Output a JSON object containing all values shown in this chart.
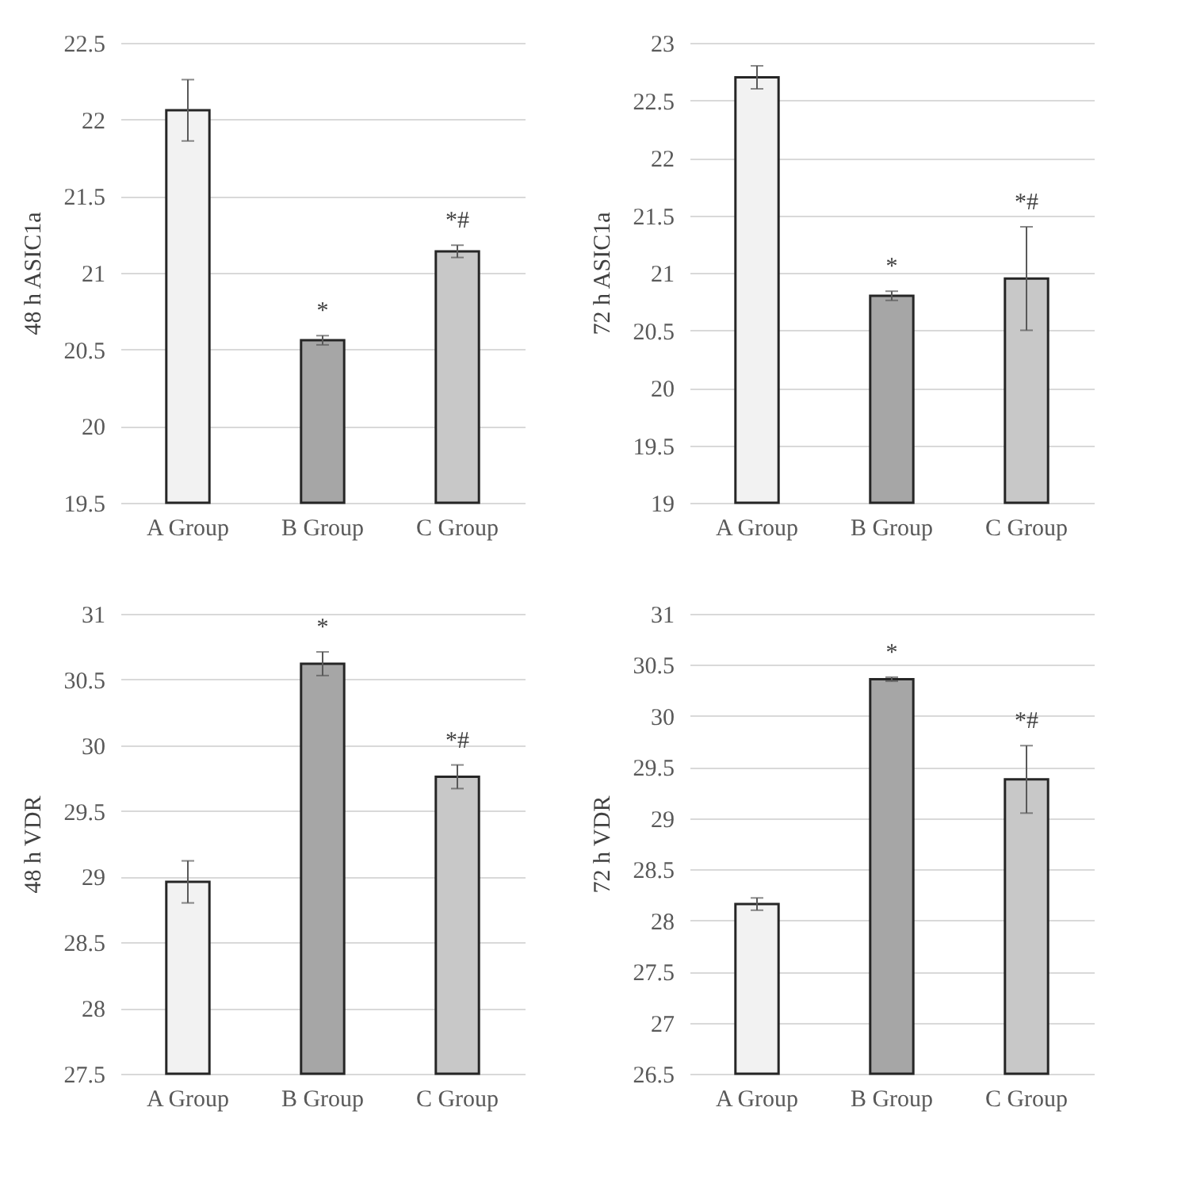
{
  "chart_data": [
    {
      "type": "bar",
      "ylabel": "48 h ASIC1a",
      "categories": [
        "A Group",
        "B Group",
        "C Group"
      ],
      "values": [
        22.06,
        20.56,
        21.14
      ],
      "errors": [
        0.2,
        0.03,
        0.04
      ],
      "colors": [
        "#f2f2f2",
        "#a6a6a6",
        "#c8c8c8"
      ],
      "ylim": [
        19.5,
        22.5
      ],
      "yticks": [
        19.5,
        20,
        20.5,
        21,
        21.5,
        22,
        22.5
      ],
      "grid": "y",
      "annotations": [
        "*",
        "*#"
      ]
    },
    {
      "type": "bar",
      "ylabel": "72 h ASIC1a",
      "categories": [
        "A Group",
        "B Group",
        "C Group"
      ],
      "values": [
        22.7,
        20.8,
        20.95
      ],
      "errors": [
        0.1,
        0.04,
        0.45
      ],
      "colors": [
        "#f2f2f2",
        "#a6a6a6",
        "#c8c8c8"
      ],
      "ylim": [
        19,
        23
      ],
      "yticks": [
        19,
        19.5,
        20,
        20.5,
        21,
        21.5,
        22,
        22.5,
        23
      ],
      "grid": "y",
      "annotations": [
        "*",
        "*#"
      ]
    },
    {
      "type": "bar",
      "ylabel": "48 h VDR",
      "categories": [
        "A Group",
        "B Group",
        "C Group"
      ],
      "values": [
        28.96,
        30.62,
        29.76
      ],
      "errors": [
        0.16,
        0.09,
        0.09
      ],
      "colors": [
        "#f2f2f2",
        "#a6a6a6",
        "#c8c8c8"
      ],
      "ylim": [
        27.5,
        31
      ],
      "yticks": [
        27.5,
        28,
        28.5,
        29,
        29.5,
        30,
        30.5,
        31
      ],
      "grid": "y",
      "annotations": [
        "*",
        "*#"
      ]
    },
    {
      "type": "bar",
      "ylabel": "72 h VDR",
      "categories": [
        "A Group",
        "B Group",
        "C Group"
      ],
      "values": [
        28.16,
        30.36,
        29.38
      ],
      "errors": [
        0.06,
        0.02,
        0.33
      ],
      "colors": [
        "#f2f2f2",
        "#a6a6a6",
        "#c8c8c8"
      ],
      "ylim": [
        26.5,
        31
      ],
      "yticks": [
        26.5,
        27,
        27.5,
        28,
        28.5,
        29,
        29.5,
        30,
        30.5,
        31
      ],
      "grid": "y",
      "annotations": [
        "*",
        "*#"
      ]
    }
  ]
}
